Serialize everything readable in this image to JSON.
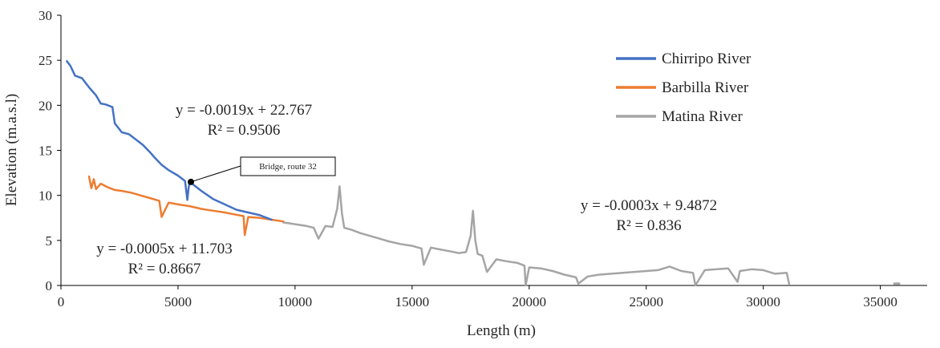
{
  "chart_data": {
    "type": "line",
    "title": "",
    "xlabel": "Length (m)",
    "ylabel": "Elevation (m.a.s.l)",
    "xlim": [
      0,
      37000
    ],
    "ylim": [
      0,
      30
    ],
    "x_ticks": [
      0,
      5000,
      10000,
      15000,
      20000,
      25000,
      30000,
      35000
    ],
    "y_ticks": [
      0,
      5,
      10,
      15,
      20,
      25,
      30
    ],
    "x_tick_labels": [
      "0",
      "5000",
      "10000",
      "15000",
      "20000",
      "25000",
      "30000",
      "35000"
    ],
    "y_tick_labels": [
      "0",
      "5",
      "10",
      "15",
      "20",
      "25",
      "30"
    ],
    "grid": false,
    "legend_position": "top-right",
    "series": [
      {
        "name": "Chirripo River",
        "color": "#4472C4",
        "x": [
          250,
          400,
          600,
          900,
          1200,
          1500,
          1700,
          1900,
          2200,
          2300,
          2600,
          2900,
          3200,
          3500,
          3800,
          4000,
          4300,
          4600,
          5000,
          5300,
          5400,
          5450,
          5500,
          5600,
          6000,
          6500,
          7000,
          7500,
          8000,
          8500,
          9000
        ],
        "y": [
          24.9,
          24.4,
          23.3,
          23.0,
          22.0,
          21.1,
          20.2,
          20.1,
          19.8,
          18.0,
          17.0,
          16.8,
          16.2,
          15.6,
          14.8,
          14.2,
          13.4,
          12.8,
          12.2,
          11.6,
          9.5,
          10.8,
          11.5,
          11.3,
          10.5,
          9.6,
          9.0,
          8.4,
          8.1,
          7.8,
          7.3
        ]
      },
      {
        "name": "Barbilla River",
        "color": "#ED7D31",
        "x": [
          1200,
          1300,
          1400,
          1500,
          1700,
          2000,
          2300,
          2600,
          3000,
          3400,
          3800,
          4200,
          4300,
          4600,
          5000,
          5500,
          6000,
          6500,
          7000,
          7400,
          7800,
          7850,
          8000,
          8500,
          9000,
          9500
        ],
        "y": [
          12.1,
          10.8,
          11.8,
          10.7,
          11.3,
          10.9,
          10.6,
          10.5,
          10.3,
          10.0,
          9.7,
          9.4,
          7.6,
          9.2,
          9.0,
          8.8,
          8.5,
          8.3,
          8.1,
          7.9,
          7.7,
          5.6,
          7.6,
          7.5,
          7.3,
          7.1
        ]
      },
      {
        "name": "Matina River",
        "color": "#A5A5A5",
        "x": [
          9500,
          10000,
          10500,
          10800,
          11000,
          11300,
          11600,
          11800,
          11900,
          12000,
          12100,
          12400,
          12800,
          13200,
          13600,
          14000,
          14500,
          15000,
          15400,
          15500,
          15800,
          16200,
          16600,
          17000,
          17300,
          17500,
          17600,
          17700,
          17800,
          18000,
          18200,
          18600,
          19000,
          19500,
          19800,
          19850,
          20000,
          20500,
          21000,
          21500,
          22000,
          22100,
          22500,
          23000,
          23500,
          24000,
          24500,
          25000,
          25500,
          26000,
          26500,
          27000,
          27100,
          27500,
          28000,
          28500,
          28900,
          29000,
          29500,
          30000,
          30500,
          31000,
          31100,
          35700
        ],
        "y": [
          7.0,
          6.8,
          6.6,
          6.4,
          5.2,
          6.6,
          6.5,
          8.5,
          11.0,
          8.0,
          6.4,
          6.2,
          5.8,
          5.5,
          5.2,
          4.9,
          4.6,
          4.4,
          4.1,
          2.3,
          4.2,
          4.0,
          3.8,
          3.6,
          3.7,
          5.5,
          8.3,
          5.0,
          3.5,
          3.3,
          1.5,
          2.9,
          2.7,
          2.5,
          2.2,
          0.0,
          2.0,
          1.9,
          1.6,
          1.2,
          0.9,
          0.2,
          1.0,
          1.2,
          1.3,
          1.4,
          1.5,
          1.6,
          1.7,
          2.1,
          1.6,
          1.4,
          0.0,
          1.7,
          1.8,
          1.9,
          0.4,
          1.6,
          1.8,
          1.7,
          1.3,
          1.4,
          0.2,
          0.2
        ]
      }
    ],
    "annotations": [
      {
        "text_lines": [
          "y = -0.0019x + 22.767",
          "R² = 0.9506"
        ],
        "series": "Chirripo River"
      },
      {
        "text_lines": [
          "y = -0.0005x + 11.703",
          "R² = 0.8667"
        ],
        "series": "Barbilla River"
      },
      {
        "text_lines": [
          "y = -0.0003x + 9.4872",
          "R² = 0.836"
        ],
        "series": "Matina River"
      }
    ],
    "callout": {
      "text": "Bridge, route 32",
      "x": 5550,
      "y": 11.5
    }
  }
}
